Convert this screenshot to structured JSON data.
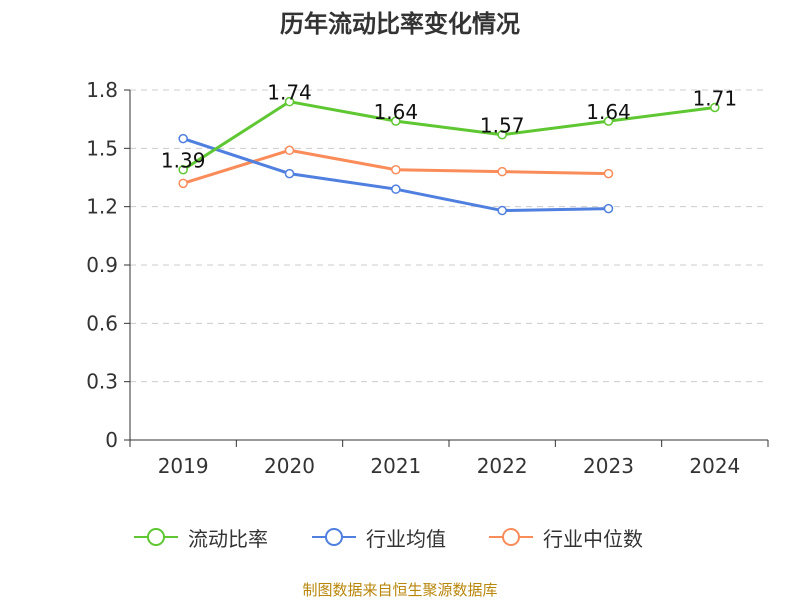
{
  "title": "历年流动比率变化情况",
  "source": "制图数据来自恒生聚源数据库",
  "legend": {
    "item1": "流动比率",
    "item2": "行业均值",
    "item3": "行业中位数"
  },
  "chart_data": {
    "type": "line",
    "title": "历年流动比率变化情况",
    "categories": [
      "2019",
      "2020",
      "2021",
      "2022",
      "2023",
      "2024"
    ],
    "ylim": [
      0,
      1.8
    ],
    "yticks": [
      "0",
      "0.3",
      "0.6",
      "0.9",
      "1.2",
      "1.5",
      "1.8"
    ],
    "grid": true,
    "legend_position": "bottom",
    "series": [
      {
        "name": "流动比率",
        "color": "#5ec731",
        "labels": true,
        "values": [
          1.39,
          1.74,
          1.64,
          1.57,
          1.64,
          1.71
        ]
      },
      {
        "name": "行业均值",
        "color": "#4f7fdf",
        "labels": false,
        "values": [
          1.55,
          1.37,
          1.29,
          1.18,
          1.19,
          null
        ]
      },
      {
        "name": "行业中位数",
        "color": "#fa8c5a",
        "labels": false,
        "values": [
          1.32,
          1.49,
          1.39,
          1.38,
          1.37,
          null
        ]
      }
    ]
  }
}
